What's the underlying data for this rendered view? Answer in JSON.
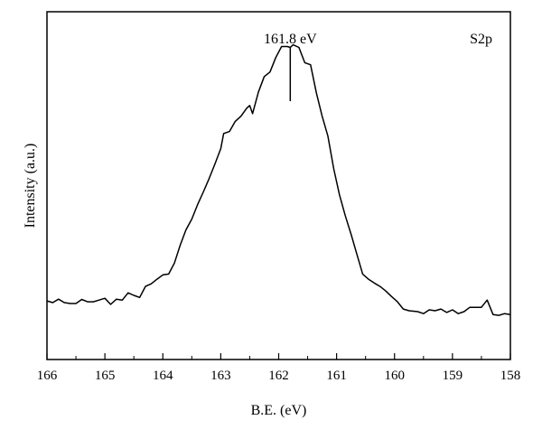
{
  "chart_data": {
    "type": "line",
    "title": "",
    "xlabel": "B.E. (eV)",
    "ylabel": "Intensity (a.u.)",
    "xlim": [
      166,
      158
    ],
    "x_reversed": true,
    "ylim": [
      0,
      100
    ],
    "y_ticks_shown": false,
    "grid": false,
    "x_ticks": [
      "166",
      "165",
      "164",
      "163",
      "162",
      "161",
      "160",
      "159",
      "158"
    ],
    "series": [
      {
        "name": "",
        "color": "#000000",
        "points": [
          [
            166.0,
            13.4
          ],
          [
            165.9,
            12.8
          ],
          [
            165.8,
            14.0
          ],
          [
            165.7,
            12.8
          ],
          [
            165.6,
            12.5
          ],
          [
            165.5,
            12.5
          ],
          [
            165.4,
            13.9
          ],
          [
            165.3,
            13.1
          ],
          [
            165.2,
            13.1
          ],
          [
            165.1,
            13.7
          ],
          [
            165.0,
            14.3
          ],
          [
            164.9,
            12.2
          ],
          [
            164.8,
            14.0
          ],
          [
            164.7,
            13.7
          ],
          [
            164.6,
            16.2
          ],
          [
            164.5,
            15.3
          ],
          [
            164.4,
            14.6
          ],
          [
            164.3,
            18.4
          ],
          [
            164.2,
            19.3
          ],
          [
            164.1,
            20.9
          ],
          [
            164.0,
            22.4
          ],
          [
            163.9,
            22.7
          ],
          [
            163.8,
            26.5
          ],
          [
            163.7,
            32.7
          ],
          [
            163.6,
            38.0
          ],
          [
            163.5,
            41.7
          ],
          [
            163.4,
            46.7
          ],
          [
            163.3,
            51.1
          ],
          [
            163.2,
            55.8
          ],
          [
            163.1,
            60.8
          ],
          [
            163.0,
            66.1
          ],
          [
            162.95,
            71.3
          ],
          [
            162.85,
            72.0
          ],
          [
            162.75,
            75.5
          ],
          [
            162.65,
            77.3
          ],
          [
            162.55,
            80.1
          ],
          [
            162.5,
            81.0
          ],
          [
            162.45,
            78.2
          ],
          [
            162.35,
            85.7
          ],
          [
            162.25,
            91.0
          ],
          [
            162.15,
            92.6
          ],
          [
            162.05,
            97.6
          ],
          [
            161.95,
            101.4
          ],
          [
            161.85,
            101.4
          ],
          [
            161.8,
            101.1
          ],
          [
            161.75,
            102.0
          ],
          [
            161.65,
            101.1
          ],
          [
            161.55,
            95.8
          ],
          [
            161.45,
            95.1
          ],
          [
            161.35,
            85.4
          ],
          [
            161.25,
            77.3
          ],
          [
            161.15,
            70.4
          ],
          [
            161.05,
            59.2
          ],
          [
            160.95,
            50.1
          ],
          [
            160.85,
            42.9
          ],
          [
            160.75,
            36.4
          ],
          [
            160.65,
            29.5
          ],
          [
            160.55,
            22.7
          ],
          [
            160.45,
            20.9
          ],
          [
            160.35,
            19.6
          ],
          [
            160.25,
            18.4
          ],
          [
            160.15,
            16.8
          ],
          [
            160.05,
            14.9
          ],
          [
            159.95,
            13.1
          ],
          [
            159.85,
            10.6
          ],
          [
            159.75,
            10.0
          ],
          [
            159.6,
            9.7
          ],
          [
            159.5,
            9.0
          ],
          [
            159.4,
            10.3
          ],
          [
            159.3,
            10.0
          ],
          [
            159.2,
            10.6
          ],
          [
            159.1,
            9.4
          ],
          [
            159.0,
            10.3
          ],
          [
            158.9,
            9.0
          ],
          [
            158.8,
            9.7
          ],
          [
            158.7,
            11.2
          ],
          [
            158.6,
            11.2
          ],
          [
            158.5,
            11.2
          ],
          [
            158.4,
            13.7
          ],
          [
            158.3,
            8.7
          ],
          [
            158.2,
            8.4
          ],
          [
            158.1,
            9.0
          ],
          [
            158.0,
            8.7
          ]
        ]
      }
    ],
    "annotations": [
      {
        "text": "161.8 eV",
        "x": 161.8
      },
      {
        "text": "S2p",
        "position": "top-right"
      }
    ]
  }
}
